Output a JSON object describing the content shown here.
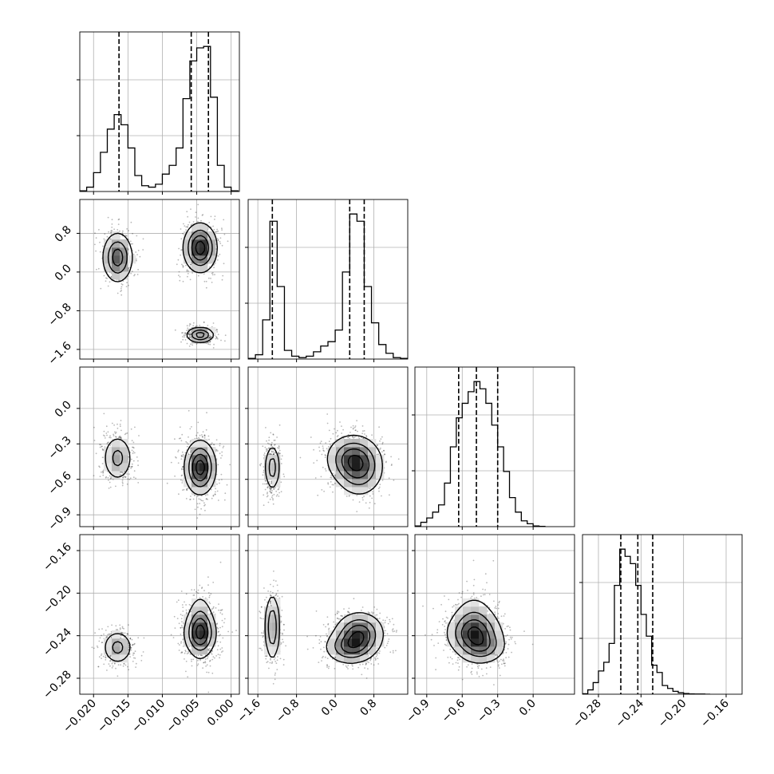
{
  "chart_data": {
    "type": "corner",
    "parameters": [
      {
        "range": [
          -0.022,
          0.0012
        ],
        "ticks": [
          -0.02,
          -0.015,
          -0.01,
          -0.005,
          0.0
        ],
        "tick_labels": [
          "−0.020",
          "−0.015",
          "−0.010",
          "−0.005",
          "0.000"
        ],
        "quantiles": [
          -0.0163,
          -0.0058,
          -0.0033
        ],
        "histogram": {
          "bin_width": 0.001,
          "bin_starts": [
            -0.022,
            -0.021,
            -0.02,
            -0.019,
            -0.018,
            -0.017,
            -0.016,
            -0.015,
            -0.014,
            -0.013,
            -0.012,
            -0.011,
            -0.01,
            -0.009,
            -0.008,
            -0.007,
            -0.006,
            -0.005,
            -0.004,
            -0.003,
            -0.002,
            -0.001,
            0.0
          ],
          "counts": [
            0.5,
            3,
            13,
            27,
            43,
            53,
            46,
            30,
            11,
            4,
            3,
            5,
            12,
            18,
            30,
            64,
            90,
            99,
            100,
            65,
            18,
            3,
            0.5
          ]
        },
        "hist_ymax": 110
      },
      {
        "range": [
          -1.8,
          1.5
        ],
        "ticks": [
          -1.6,
          -0.8,
          0.0,
          0.8
        ],
        "tick_labels": [
          "−1.6",
          "−0.8",
          "0.0",
          "0.8"
        ],
        "quantiles": [
          -1.3,
          0.3,
          0.6
        ],
        "histogram": {
          "bin_width": 0.15,
          "bin_starts": [
            -1.8,
            -1.65,
            -1.5,
            -1.35,
            -1.2,
            -1.05,
            -0.9,
            -0.75,
            -0.6,
            -0.45,
            -0.3,
            -0.15,
            0.0,
            0.15,
            0.3,
            0.45,
            0.6,
            0.75,
            0.9,
            1.05,
            1.2,
            1.35
          ],
          "counts": [
            0.5,
            3,
            27,
            95,
            50,
            6,
            2,
            1,
            2,
            5,
            9,
            12,
            20,
            60,
            100,
            95,
            50,
            25,
            10,
            4,
            1,
            0.5
          ]
        },
        "hist_ymax": 110
      },
      {
        "range": [
          -1.0,
          0.35
        ],
        "ticks": [
          -0.9,
          -0.6,
          -0.3,
          0.0
        ],
        "tick_labels": [
          "−0.9",
          "−0.6",
          "−0.3",
          "0.0"
        ],
        "quantiles": [
          -0.63,
          -0.48,
          -0.3
        ],
        "histogram": {
          "bin_width": 0.05,
          "bin_starts": [
            -1.0,
            -0.95,
            -0.9,
            -0.85,
            -0.8,
            -0.75,
            -0.7,
            -0.65,
            -0.6,
            -0.55,
            -0.5,
            -0.45,
            -0.4,
            -0.35,
            -0.3,
            -0.25,
            -0.2,
            -0.15,
            -0.1,
            -0.05,
            0.0,
            0.05
          ],
          "counts": [
            0.5,
            3,
            6,
            10,
            15,
            30,
            55,
            75,
            85,
            93,
            100,
            95,
            85,
            70,
            55,
            38,
            20,
            10,
            4,
            2,
            0.5,
            0.2
          ]
        },
        "hist_ymax": 110
      },
      {
        "range": [
          -0.295,
          -0.145
        ],
        "ticks": [
          -0.28,
          -0.24,
          -0.2,
          -0.16
        ],
        "tick_labels": [
          "−0.28",
          "−0.24",
          "−0.20",
          "−0.16"
        ],
        "quantiles": [
          -0.259,
          -0.243,
          -0.229
        ],
        "histogram": {
          "bin_width": 0.005,
          "bin_starts": [
            -0.295,
            -0.29,
            -0.285,
            -0.28,
            -0.275,
            -0.27,
            -0.265,
            -0.26,
            -0.255,
            -0.25,
            -0.245,
            -0.24,
            -0.235,
            -0.23,
            -0.225,
            -0.22,
            -0.215,
            -0.21,
            -0.205,
            -0.2,
            -0.195,
            -0.19,
            -0.185,
            -0.18
          ],
          "counts": [
            0.3,
            3,
            8,
            16,
            22,
            35,
            75,
            100,
            95,
            90,
            75,
            55,
            40,
            20,
            15,
            6,
            4,
            2,
            1,
            0.5,
            0.2,
            0.1,
            0.1,
            0
          ]
        },
        "hist_ymax": 110
      }
    ],
    "modes": [
      {
        "weight": 0.3,
        "mean": [
          -0.0165,
          0.3,
          -0.42,
          -0.251
        ],
        "std": [
          0.0011,
          0.26,
          0.1,
          0.008
        ]
      },
      {
        "weight": 0.4,
        "mean": [
          -0.0045,
          0.5,
          -0.5,
          -0.238
        ],
        "std": [
          0.0012,
          0.25,
          0.12,
          0.01
        ]
      },
      {
        "weight": 0.3,
        "mean": [
          -0.0045,
          -1.3,
          -0.5,
          -0.232
        ],
        "std": [
          0.001,
          0.08,
          0.1,
          0.016
        ]
      }
    ],
    "contour_levels": [
      0.12,
      0.35,
      0.6,
      0.86
    ],
    "grid": true
  }
}
